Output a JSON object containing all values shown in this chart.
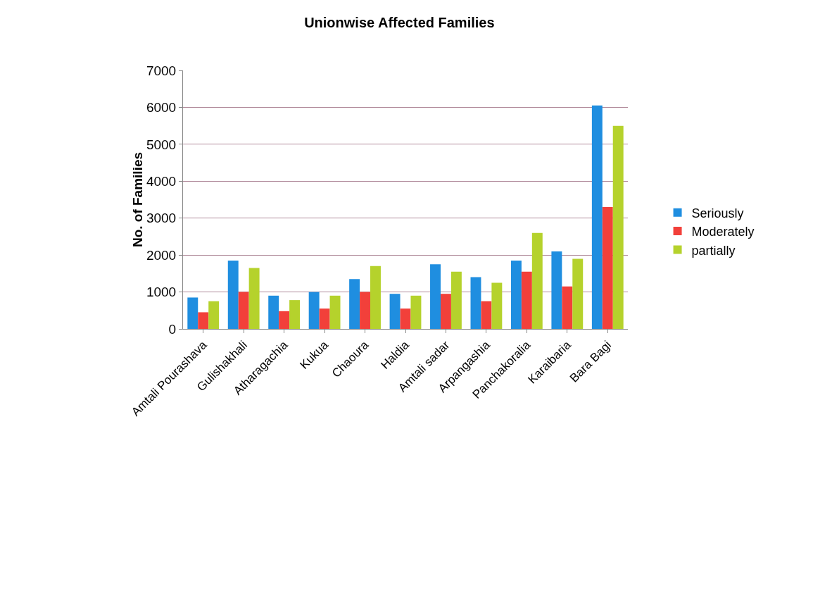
{
  "chart_data": {
    "type": "bar",
    "title": "Unionwise Affected Families",
    "ylabel": "No. of Families",
    "categories": [
      "Amtali Pourashava",
      "Gulishakhali",
      "Atharagachia",
      "Kukua",
      "Chaoura",
      "Haldia",
      "Amtali sadar",
      "Arpangashia",
      "Panchakoralia",
      "Karaibaria",
      "Bara Bagi"
    ],
    "series": [
      {
        "name": "Seriously",
        "color": "#1f8ee0",
        "values": [
          850,
          1850,
          900,
          1000,
          1350,
          950,
          1750,
          1400,
          1850,
          2100,
          6050
        ]
      },
      {
        "name": "Moderately",
        "color": "#f2403a",
        "values": [
          450,
          1000,
          480,
          550,
          1000,
          550,
          950,
          750,
          1550,
          1150,
          3300
        ]
      },
      {
        "name": "partially",
        "color": "#b5d22c",
        "values": [
          750,
          1650,
          780,
          900,
          1700,
          900,
          1550,
          1250,
          2600,
          1900,
          5500
        ]
      }
    ],
    "ylim": [
      0,
      7000
    ],
    "yticks": [
      0,
      1000,
      2000,
      3000,
      4000,
      5000,
      6000,
      7000
    ],
    "grid": "y",
    "legend": "right"
  }
}
